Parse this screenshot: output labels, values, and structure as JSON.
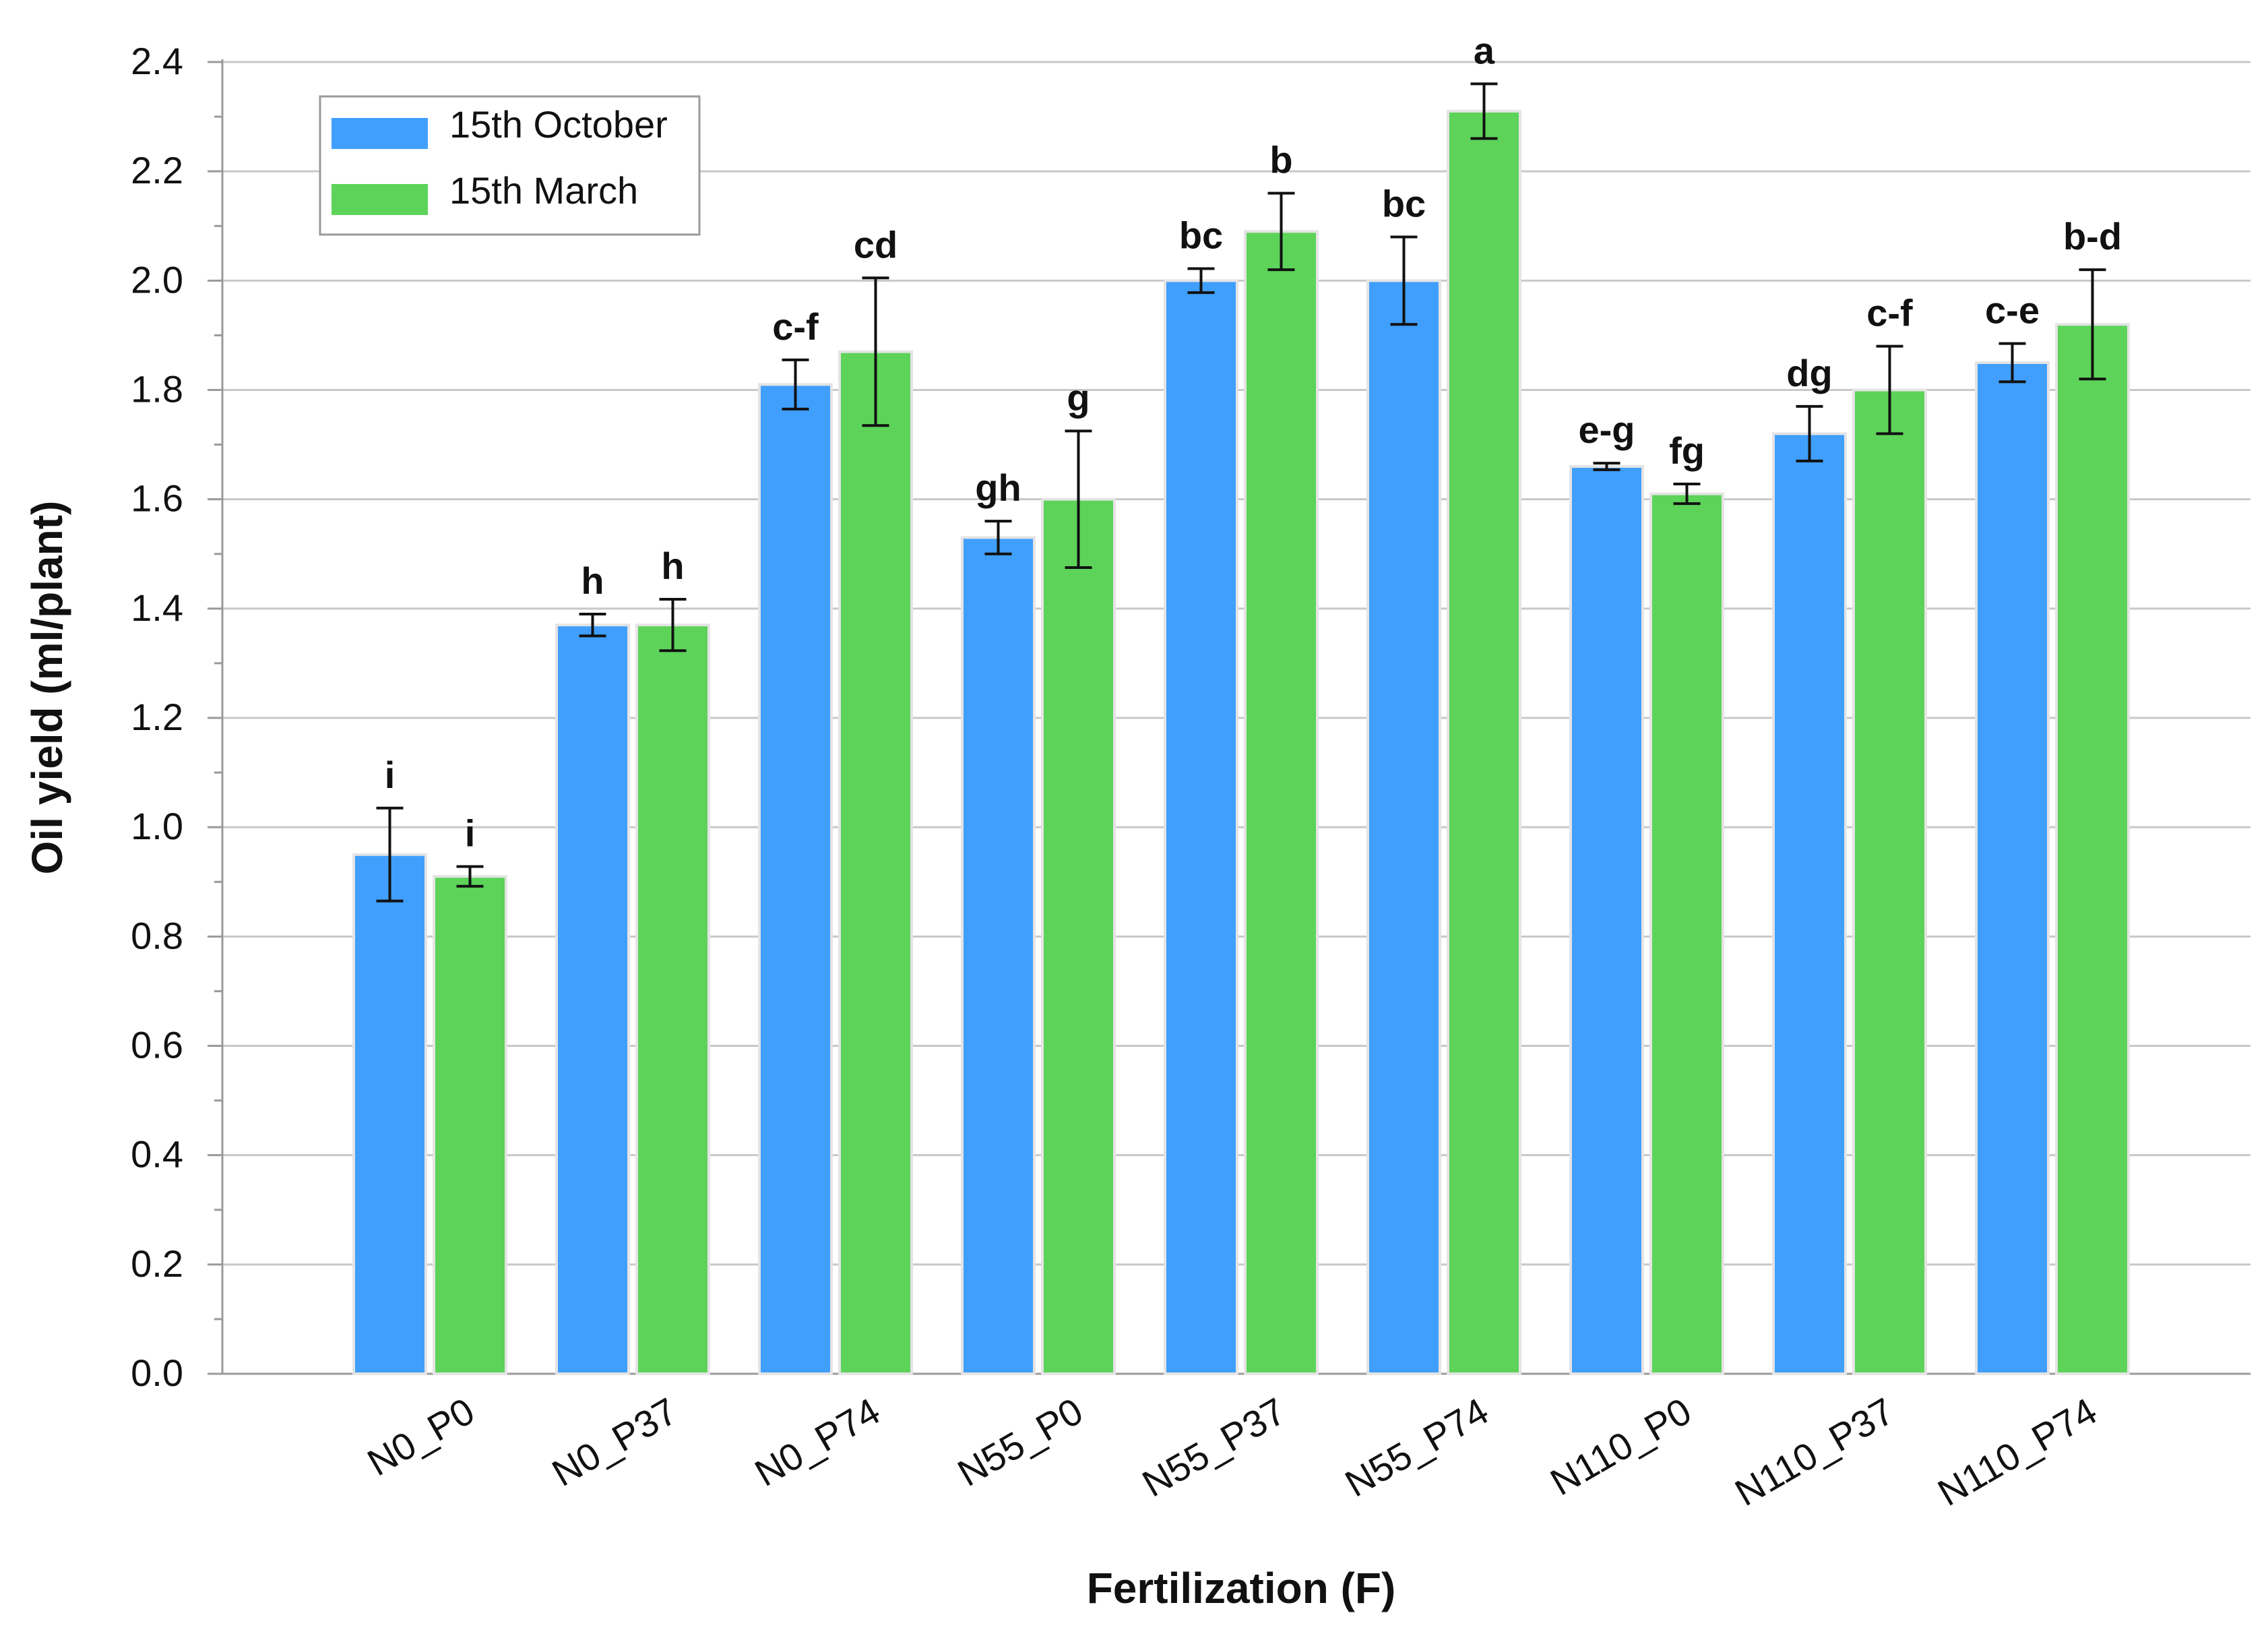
{
  "chart_data": {
    "type": "bar",
    "title": "",
    "xlabel": "Fertilization (F)",
    "ylabel": "Oil yield (ml/plant)",
    "ylim": [
      0,
      2.4
    ],
    "yticks": [
      "0.0",
      "0.2",
      "0.4",
      "0.6",
      "0.8",
      "1.0",
      "1.2",
      "1.4",
      "1.6",
      "1.8",
      "2.0",
      "2.2",
      "2.4"
    ],
    "grid": true,
    "legend_position": "top-left",
    "categories": [
      "N0_P0",
      "N0_P37",
      "N0_P74",
      "N55_P0",
      "N55_P37",
      "N55_P74",
      "N110_P0",
      "N110_P37",
      "N110_P74"
    ],
    "series": [
      {
        "name": "15th October",
        "color": "#409ffc",
        "values": [
          0.95,
          1.37,
          1.81,
          1.53,
          2.0,
          2.0,
          1.66,
          1.72,
          1.85
        ],
        "errors": [
          0.085,
          0.02,
          0.045,
          0.03,
          0.022,
          0.08,
          0.006,
          0.05,
          0.035
        ],
        "letters": [
          "i",
          "h",
          "c-f",
          "gh",
          "bc",
          "bc",
          "e-g",
          "dg",
          "c-e"
        ]
      },
      {
        "name": "15th March",
        "color": "#5dd35a",
        "values": [
          0.91,
          1.37,
          1.87,
          1.6,
          2.09,
          2.31,
          1.61,
          1.8,
          1.92
        ],
        "errors": [
          0.018,
          0.047,
          0.135,
          0.125,
          0.07,
          0.05,
          0.018,
          0.08,
          0.1
        ],
        "letters": [
          "i",
          "h",
          "cd",
          "g",
          "b",
          "a",
          "fg",
          "c-f",
          "b-d"
        ]
      }
    ]
  }
}
